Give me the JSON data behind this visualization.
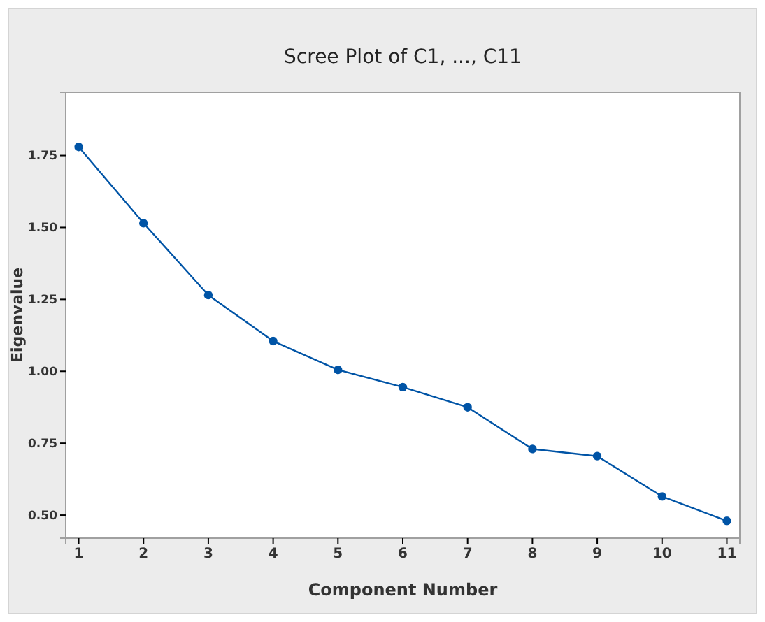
{
  "chart_data": {
    "type": "line",
    "title": "Scree Plot of C1, ..., C11",
    "xlabel": "Component Number",
    "ylabel": "Eigenvalue",
    "x": [
      1,
      2,
      3,
      4,
      5,
      6,
      7,
      8,
      9,
      10,
      11
    ],
    "series": [
      {
        "color": "#0054a6",
        "values": [
          1.78,
          1.515,
          1.265,
          1.105,
          1.005,
          0.945,
          0.875,
          0.73,
          0.705,
          0.565,
          0.48
        ]
      }
    ],
    "xlim": [
      0.8,
      11.2
    ],
    "xticks": [
      1,
      2,
      3,
      4,
      5,
      6,
      7,
      8,
      9,
      10,
      11
    ],
    "ylim": [
      0.42,
      1.97
    ],
    "yticks": [
      {
        "value": 0.5,
        "label": "0.50"
      },
      {
        "value": 0.75,
        "label": "0.75"
      },
      {
        "value": 1.0,
        "label": "1.00"
      },
      {
        "value": 1.25,
        "label": "1.25"
      },
      {
        "value": 1.5,
        "label": "1.50"
      },
      {
        "value": 1.75,
        "label": "1.75"
      }
    ],
    "grid": false,
    "marker": "circle",
    "line_style": "solid"
  }
}
